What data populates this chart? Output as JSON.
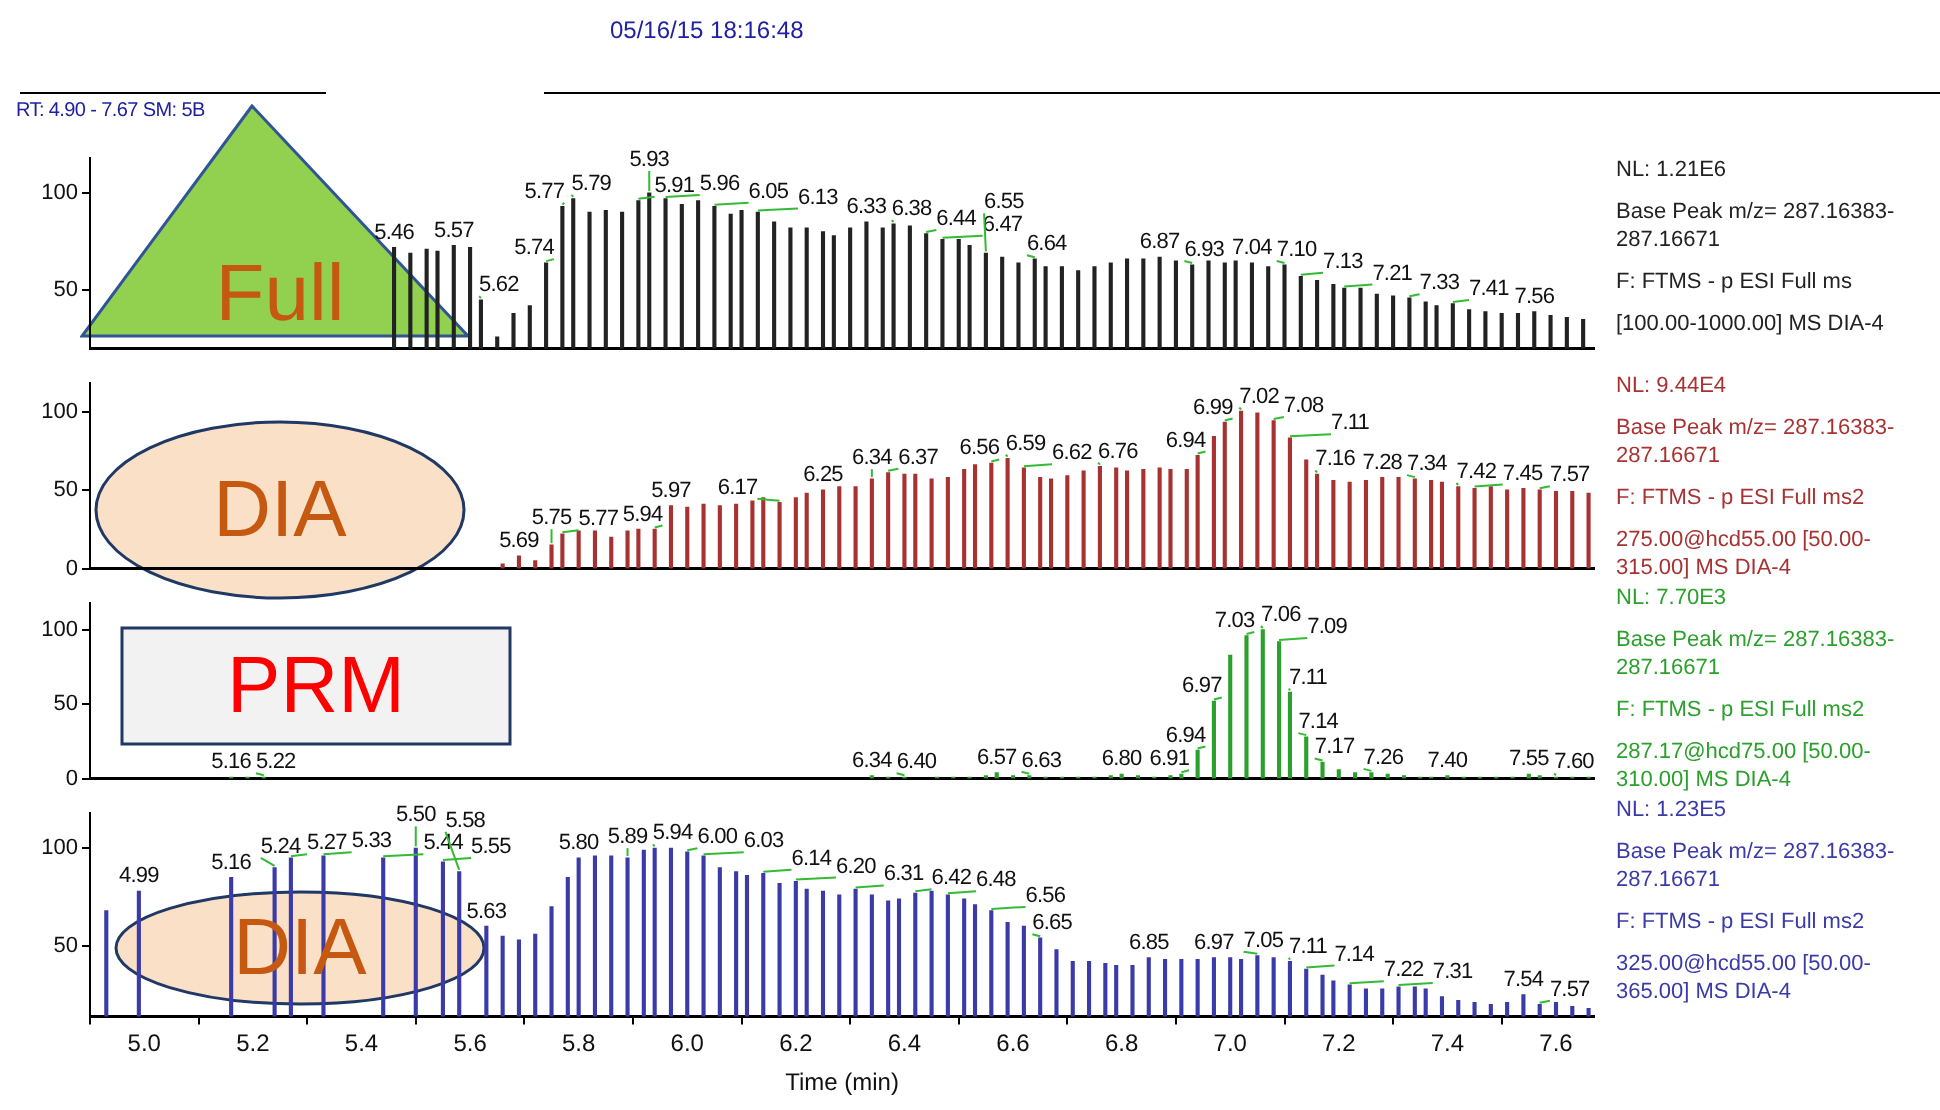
{
  "chart_data": [
    {
      "type": "bar",
      "xlim": [
        4.9,
        7.67
      ],
      "ylim": [
        20,
        118
      ],
      "yticks": [
        50,
        100
      ],
      "tick_labels": "y",
      "annotations": [
        "Full",
        "05/16/15 18:16:48",
        "RT: 4.90 - 7.67  SM: 5B",
        "NL: 1.21E6",
        "Base Peak m/z= 287.16383-287.16671",
        "F: FTMS - p ESI Full ms",
        "[100.00-1000.00]  MS DIA-4",
        {
          "text": "5.46",
          "x": 5.46,
          "y": 72
        },
        {
          "text": "5.57",
          "x": 5.57,
          "y": 73
        },
        {
          "text": "5.62",
          "x": 5.62,
          "y": 45
        },
        {
          "text": "5.74",
          "x": 5.74,
          "y": 64
        },
        {
          "text": "5.77",
          "x": 5.77,
          "y": 93
        },
        {
          "text": "5.79",
          "x": 5.79,
          "y": 97
        },
        {
          "text": "5.91",
          "x": 5.91,
          "y": 96
        },
        {
          "text": "5.93",
          "x": 5.93,
          "y": 100
        },
        {
          "text": "5.96",
          "x": 5.96,
          "y": 97
        },
        {
          "text": "6.05",
          "x": 6.05,
          "y": 93
        },
        {
          "text": "6.13",
          "x": 6.13,
          "y": 90
        },
        {
          "text": "6.33",
          "x": 6.33,
          "y": 85
        },
        {
          "text": "6.38",
          "x": 6.38,
          "y": 84
        },
        {
          "text": "6.44",
          "x": 6.44,
          "y": 79
        },
        {
          "text": "6.47",
          "x": 6.47,
          "y": 76
        },
        {
          "text": "6.55",
          "x": 6.55,
          "y": 69
        },
        {
          "text": "6.64",
          "x": 6.64,
          "y": 66
        },
        {
          "text": "6.87",
          "x": 6.87,
          "y": 67
        },
        {
          "text": "6.93",
          "x": 6.93,
          "y": 63
        },
        {
          "text": "7.04",
          "x": 7.04,
          "y": 64
        },
        {
          "text": "7.10",
          "x": 7.1,
          "y": 63
        },
        {
          "text": "7.13",
          "x": 7.13,
          "y": 57
        },
        {
          "text": "7.21",
          "x": 7.21,
          "y": 51
        },
        {
          "text": "7.33",
          "x": 7.33,
          "y": 46
        },
        {
          "text": "7.41",
          "x": 7.41,
          "y": 43
        },
        {
          "text": "7.56",
          "x": 7.56,
          "y": 39
        }
      ],
      "x": [
        5.46,
        5.49,
        5.52,
        5.54,
        5.57,
        5.6,
        5.62,
        5.65,
        5.68,
        5.71,
        5.74,
        5.77,
        5.79,
        5.82,
        5.85,
        5.88,
        5.91,
        5.93,
        5.96,
        5.99,
        6.02,
        6.05,
        6.08,
        6.1,
        6.13,
        6.16,
        6.19,
        6.22,
        6.25,
        6.27,
        6.3,
        6.33,
        6.36,
        6.38,
        6.41,
        6.44,
        6.47,
        6.5,
        6.52,
        6.55,
        6.58,
        6.61,
        6.64,
        6.66,
        6.69,
        6.72,
        6.75,
        6.78,
        6.81,
        6.84,
        6.87,
        6.9,
        6.93,
        6.96,
        6.99,
        7.01,
        7.04,
        7.07,
        7.1,
        7.13,
        7.16,
        7.19,
        7.21,
        7.24,
        7.27,
        7.3,
        7.33,
        7.36,
        7.38,
        7.41,
        7.44,
        7.47,
        7.5,
        7.53,
        7.56,
        7.59,
        7.62,
        7.65
      ],
      "series": [
        {
          "color": "#222222",
          "values": [
            72,
            69,
            71,
            70,
            73,
            72,
            45,
            26,
            38,
            42,
            64,
            93,
            97,
            90,
            91,
            90,
            96,
            100,
            97,
            94,
            96,
            93,
            89,
            91,
            90,
            85,
            82,
            82,
            80,
            78,
            82,
            85,
            82,
            84,
            83,
            79,
            76,
            76,
            73,
            69,
            67,
            64,
            66,
            62,
            62,
            60,
            62,
            64,
            66,
            66,
            67,
            65,
            63,
            65,
            64,
            65,
            64,
            62,
            63,
            57,
            55,
            53,
            51,
            51,
            48,
            47,
            46,
            44,
            42,
            43,
            40,
            39,
            38,
            38,
            39,
            37,
            36,
            35
          ]
        }
      ]
    },
    {
      "type": "bar",
      "xlim": [
        4.9,
        7.67
      ],
      "ylim": [
        0,
        118
      ],
      "yticks": [
        0,
        50,
        100
      ],
      "tick_labels": "y",
      "annotations": [
        "DIA",
        "NL: 9.44E4",
        "Base Peak m/z= 287.16383-287.16671",
        "F: FTMS - p ESI Full ms2",
        "275.00@hcd55.00 [50.00-315.00]  MS DIA-4",
        {
          "text": "5.69",
          "x": 5.69,
          "y": 8
        },
        {
          "text": "5.75",
          "x": 5.75,
          "y": 15
        },
        {
          "text": "5.77",
          "x": 5.77,
          "y": 22
        },
        {
          "text": "5.94",
          "x": 5.94,
          "y": 25
        },
        {
          "text": "5.97",
          "x": 5.97,
          "y": 40
        },
        {
          "text": "6.17",
          "x": 6.17,
          "y": 42
        },
        {
          "text": "6.25",
          "x": 6.25,
          "y": 50
        },
        {
          "text": "6.34",
          "x": 6.34,
          "y": 57
        },
        {
          "text": "6.37",
          "x": 6.37,
          "y": 61
        },
        {
          "text": "6.56",
          "x": 6.56,
          "y": 67
        },
        {
          "text": "6.59",
          "x": 6.59,
          "y": 70
        },
        {
          "text": "6.62",
          "x": 6.62,
          "y": 64
        },
        {
          "text": "6.76",
          "x": 6.76,
          "y": 65
        },
        {
          "text": "6.94",
          "x": 6.94,
          "y": 72
        },
        {
          "text": "6.99",
          "x": 6.99,
          "y": 93
        },
        {
          "text": "7.02",
          "x": 7.02,
          "y": 100
        },
        {
          "text": "7.08",
          "x": 7.08,
          "y": 94
        },
        {
          "text": "7.11",
          "x": 7.11,
          "y": 83
        },
        {
          "text": "7.16",
          "x": 7.16,
          "y": 60
        },
        {
          "text": "7.28",
          "x": 7.28,
          "y": 58
        },
        {
          "text": "7.34",
          "x": 7.34,
          "y": 57
        },
        {
          "text": "7.42",
          "x": 7.42,
          "y": 52
        },
        {
          "text": "7.45",
          "x": 7.45,
          "y": 51
        },
        {
          "text": "7.57",
          "x": 7.57,
          "y": 50
        }
      ],
      "x": [
        5.66,
        5.69,
        5.72,
        5.75,
        5.77,
        5.8,
        5.83,
        5.86,
        5.89,
        5.91,
        5.94,
        5.97,
        6.0,
        6.03,
        6.06,
        6.09,
        6.12,
        6.14,
        6.17,
        6.2,
        6.22,
        6.25,
        6.28,
        6.31,
        6.34,
        6.37,
        6.4,
        6.42,
        6.45,
        6.48,
        6.51,
        6.53,
        6.56,
        6.59,
        6.62,
        6.65,
        6.67,
        6.7,
        6.73,
        6.76,
        6.79,
        6.81,
        6.84,
        6.87,
        6.89,
        6.92,
        6.94,
        6.97,
        6.99,
        7.02,
        7.05,
        7.08,
        7.11,
        7.14,
        7.16,
        7.19,
        7.22,
        7.25,
        7.28,
        7.31,
        7.34,
        7.37,
        7.39,
        7.42,
        7.45,
        7.48,
        7.51,
        7.54,
        7.57,
        7.6,
        7.63,
        7.66
      ],
      "series": [
        {
          "color": "#a83232",
          "values": [
            3,
            8,
            5,
            15,
            22,
            24,
            24,
            20,
            24,
            25,
            25,
            40,
            39,
            41,
            40,
            41,
            43,
            45,
            42,
            45,
            48,
            50,
            52,
            52,
            57,
            61,
            60,
            60,
            57,
            58,
            63,
            66,
            67,
            70,
            64,
            58,
            57,
            59,
            62,
            65,
            64,
            62,
            63,
            64,
            63,
            63,
            72,
            84,
            93,
            100,
            99,
            94,
            83,
            69,
            60,
            56,
            55,
            56,
            58,
            58,
            57,
            56,
            55,
            52,
            51,
            52,
            50,
            51,
            50,
            49,
            49,
            48
          ]
        }
      ]
    },
    {
      "type": "bar",
      "xlim": [
        4.9,
        7.67
      ],
      "ylim": [
        0,
        118
      ],
      "yticks": [
        0,
        50,
        100
      ],
      "tick_labels": "y",
      "annotations": [
        "PRM",
        "NL: 7.70E3",
        "Base Peak m/z= 287.16383-287.16671",
        "F: FTMS - p ESI Full ms2",
        "287.17@hcd75.00 [50.00-310.00]  MS DIA-4",
        {
          "text": "5.16",
          "x": 5.16,
          "y": 1
        },
        {
          "text": "5.22",
          "x": 5.22,
          "y": 1
        },
        {
          "text": "6.34",
          "x": 6.34,
          "y": 2
        },
        {
          "text": "6.40",
          "x": 6.4,
          "y": 1
        },
        {
          "text": "6.57",
          "x": 6.57,
          "y": 4
        },
        {
          "text": "6.63",
          "x": 6.63,
          "y": 2
        },
        {
          "text": "6.80",
          "x": 6.8,
          "y": 3
        },
        {
          "text": "6.91",
          "x": 6.91,
          "y": 3
        },
        {
          "text": "6.94",
          "x": 6.94,
          "y": 19
        },
        {
          "text": "6.97",
          "x": 6.97,
          "y": 52
        },
        {
          "text": "7.03",
          "x": 7.03,
          "y": 96
        },
        {
          "text": "7.06",
          "x": 7.06,
          "y": 100
        },
        {
          "text": "7.09",
          "x": 7.09,
          "y": 92
        },
        {
          "text": "7.11",
          "x": 7.11,
          "y": 58
        },
        {
          "text": "7.14",
          "x": 7.14,
          "y": 28
        },
        {
          "text": "7.17",
          "x": 7.17,
          "y": 11
        },
        {
          "text": "7.26",
          "x": 7.26,
          "y": 4
        },
        {
          "text": "7.40",
          "x": 7.4,
          "y": 2
        },
        {
          "text": "7.55",
          "x": 7.55,
          "y": 3
        },
        {
          "text": "7.60",
          "x": 7.6,
          "y": 1
        }
      ],
      "x": [
        5.16,
        5.19,
        5.22,
        6.34,
        6.37,
        6.4,
        6.46,
        6.49,
        6.52,
        6.55,
        6.57,
        6.6,
        6.63,
        6.66,
        6.69,
        6.72,
        6.75,
        6.78,
        6.8,
        6.83,
        6.86,
        6.89,
        6.91,
        6.94,
        6.97,
        7.0,
        7.03,
        7.06,
        7.09,
        7.11,
        7.14,
        7.17,
        7.2,
        7.23,
        7.26,
        7.29,
        7.32,
        7.35,
        7.37,
        7.4,
        7.43,
        7.46,
        7.49,
        7.52,
        7.55,
        7.57,
        7.6,
        7.63,
        7.66
      ],
      "series": [
        {
          "color": "#2ca02c",
          "values": [
            1,
            1,
            1,
            2,
            1,
            1,
            1,
            1,
            1,
            2,
            4,
            2,
            2,
            1,
            1,
            1,
            1,
            2,
            3,
            2,
            1,
            2,
            3,
            19,
            52,
            83,
            96,
            100,
            92,
            58,
            28,
            11,
            6,
            4,
            4,
            3,
            2,
            1,
            1,
            2,
            1,
            1,
            1,
            1,
            3,
            2,
            1,
            1,
            1
          ]
        }
      ]
    },
    {
      "type": "bar",
      "xlim": [
        4.9,
        7.67
      ],
      "ylim": [
        14,
        118
      ],
      "yticks": [
        50,
        100
      ],
      "xlabel": "Time (min)",
      "xticks": [
        {
          "value": 5.0,
          "label": "5.0"
        },
        {
          "value": 5.2,
          "label": "5.2"
        },
        {
          "value": 5.4,
          "label": "5.4"
        },
        {
          "value": 5.6,
          "label": "5.6"
        },
        {
          "value": 5.8,
          "label": "5.8"
        },
        {
          "value": 6.0,
          "label": "6.0"
        },
        {
          "value": 6.2,
          "label": "6.2"
        },
        {
          "value": 6.4,
          "label": "6.4"
        },
        {
          "value": 6.6,
          "label": "6.6"
        },
        {
          "value": 6.8,
          "label": "6.8"
        },
        {
          "value": 7.0,
          "label": "7.0"
        },
        {
          "value": 7.2,
          "label": "7.2"
        },
        {
          "value": 7.4,
          "label": "7.4"
        },
        {
          "value": 7.6,
          "label": "7.6"
        }
      ],
      "annotations": [
        "DIA",
        "NL: 1.23E5",
        "Base Peak m/z= 287.16383-287.16671",
        "F: FTMS - p ESI Full ms2",
        "325.00@hcd55.00 [50.00-365.00]  MS DIA-4",
        {
          "text": "4.99",
          "x": 4.99,
          "y": 78
        },
        {
          "text": "5.16",
          "x": 5.16,
          "y": 85
        },
        {
          "text": "5.24",
          "x": 5.24,
          "y": 90
        },
        {
          "text": "5.27",
          "x": 5.27,
          "y": 95
        },
        {
          "text": "5.33",
          "x": 5.33,
          "y": 96
        },
        {
          "text": "5.44",
          "x": 5.44,
          "y": 95
        },
        {
          "text": "5.50",
          "x": 5.5,
          "y": 100
        },
        {
          "text": "5.55",
          "x": 5.55,
          "y": 93
        },
        {
          "text": "5.58",
          "x": 5.58,
          "y": 88
        },
        {
          "text": "5.63",
          "x": 5.63,
          "y": 60
        },
        {
          "text": "5.80",
          "x": 5.8,
          "y": 95
        },
        {
          "text": "5.89",
          "x": 5.89,
          "y": 95
        },
        {
          "text": "5.94",
          "x": 5.94,
          "y": 100
        },
        {
          "text": "6.00",
          "x": 6.0,
          "y": 98
        },
        {
          "text": "6.03",
          "x": 6.03,
          "y": 96
        },
        {
          "text": "6.14",
          "x": 6.14,
          "y": 87
        },
        {
          "text": "6.20",
          "x": 6.2,
          "y": 83
        },
        {
          "text": "6.31",
          "x": 6.31,
          "y": 79
        },
        {
          "text": "6.42",
          "x": 6.42,
          "y": 77
        },
        {
          "text": "6.48",
          "x": 6.48,
          "y": 76
        },
        {
          "text": "6.56",
          "x": 6.56,
          "y": 68
        },
        {
          "text": "6.65",
          "x": 6.65,
          "y": 54
        },
        {
          "text": "6.85",
          "x": 6.85,
          "y": 44
        },
        {
          "text": "6.97",
          "x": 6.97,
          "y": 44
        },
        {
          "text": "7.05",
          "x": 7.05,
          "y": 45
        },
        {
          "text": "7.11",
          "x": 7.11,
          "y": 42
        },
        {
          "text": "7.14",
          "x": 7.14,
          "y": 38
        },
        {
          "text": "7.22",
          "x": 7.22,
          "y": 30
        },
        {
          "text": "7.31",
          "x": 7.31,
          "y": 29
        },
        {
          "text": "7.54",
          "x": 7.54,
          "y": 25
        },
        {
          "text": "7.57",
          "x": 7.57,
          "y": 20
        }
      ],
      "x": [
        4.93,
        4.99,
        5.16,
        5.24,
        5.27,
        5.33,
        5.44,
        5.5,
        5.55,
        5.58,
        5.63,
        5.66,
        5.69,
        5.72,
        5.75,
        5.78,
        5.8,
        5.83,
        5.86,
        5.89,
        5.92,
        5.94,
        5.97,
        6.0,
        6.03,
        6.06,
        6.09,
        6.11,
        6.14,
        6.17,
        6.2,
        6.22,
        6.25,
        6.28,
        6.31,
        6.34,
        6.37,
        6.39,
        6.42,
        6.45,
        6.48,
        6.51,
        6.53,
        6.56,
        6.59,
        6.62,
        6.65,
        6.68,
        6.71,
        6.74,
        6.77,
        6.79,
        6.82,
        6.85,
        6.88,
        6.91,
        6.94,
        6.97,
        7.0,
        7.02,
        7.05,
        7.08,
        7.11,
        7.14,
        7.17,
        7.19,
        7.22,
        7.25,
        7.28,
        7.31,
        7.34,
        7.36,
        7.39,
        7.42,
        7.45,
        7.48,
        7.51,
        7.54,
        7.57,
        7.6,
        7.63,
        7.66
      ],
      "series": [
        {
          "color": "#3a3aa8",
          "values": [
            68,
            78,
            85,
            90,
            95,
            96,
            95,
            100,
            93,
            88,
            60,
            55,
            53,
            56,
            70,
            85,
            95,
            96,
            96,
            95,
            99,
            100,
            100,
            98,
            96,
            90,
            88,
            86,
            87,
            82,
            83,
            79,
            78,
            76,
            79,
            76,
            73,
            74,
            77,
            78,
            76,
            74,
            71,
            68,
            62,
            60,
            54,
            48,
            42,
            42,
            41,
            40,
            40,
            44,
            43,
            43,
            43,
            44,
            44,
            43,
            45,
            44,
            42,
            38,
            35,
            32,
            30,
            28,
            28,
            29,
            29,
            28,
            24,
            22,
            21,
            20,
            21,
            25,
            20,
            21,
            19,
            18
          ]
        }
      ]
    }
  ]
}
